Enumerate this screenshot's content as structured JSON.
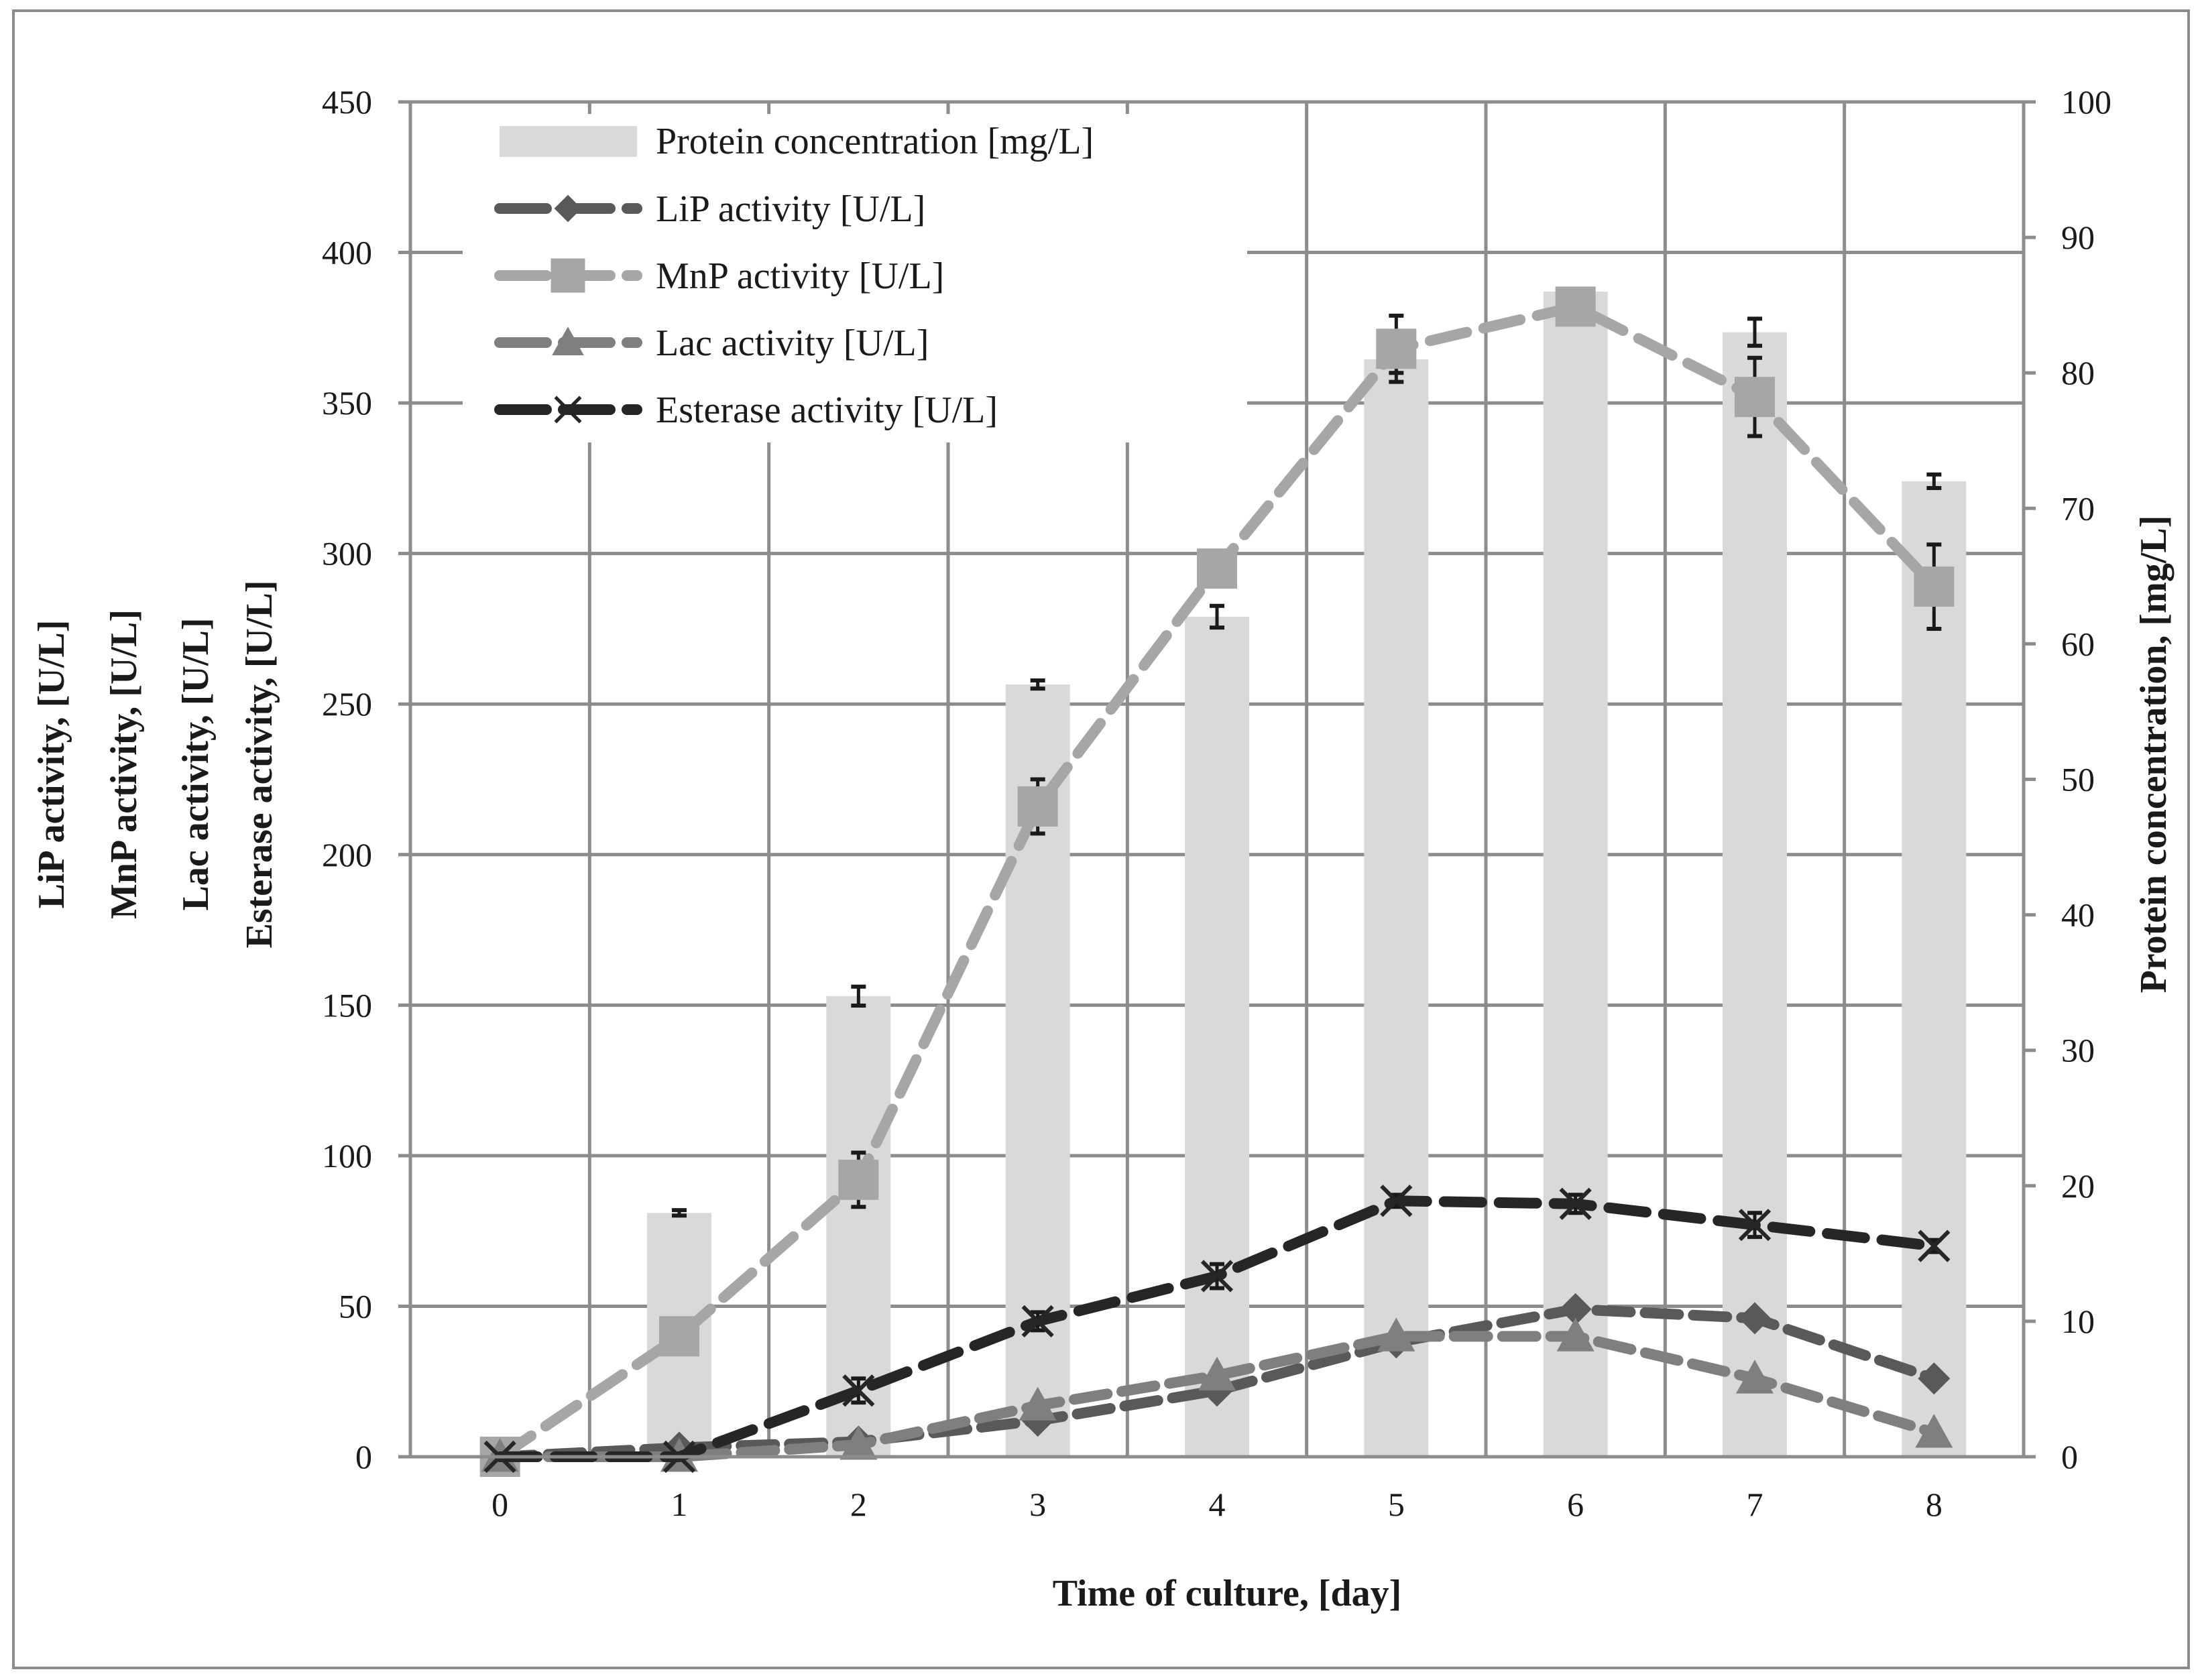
{
  "chart_data": {
    "type": "bar+line",
    "x": [
      0,
      1,
      2,
      3,
      4,
      5,
      6,
      7,
      8
    ],
    "categories": [
      "0",
      "1",
      "2",
      "3",
      "4",
      "5",
      "6",
      "7",
      "8"
    ],
    "xlabel": "Time of culture, [day]",
    "ylabel_left": [
      "LiP activity, [U/L]",
      "MnP activity, [U/L]",
      "Lac activity, [U/L]",
      "Esterase activity, [U/L]"
    ],
    "ylabel_right": "Protein concentration, [mg/L]",
    "ylim_left": [
      0,
      450
    ],
    "yticks_left": [
      0,
      50,
      100,
      150,
      200,
      250,
      300,
      350,
      400,
      450
    ],
    "ylim_right": [
      0,
      100
    ],
    "yticks_right": [
      0,
      10,
      20,
      30,
      40,
      50,
      60,
      70,
      80,
      90,
      100
    ],
    "grid": true,
    "legend_position": "top-left",
    "bars": {
      "name": "Protein concentration [mg/L]",
      "axis": "right",
      "values": [
        0,
        18,
        34,
        57,
        62,
        81,
        86,
        83,
        72
      ],
      "errors": [
        0,
        0.2,
        0.7,
        0.3,
        0.8,
        1.0,
        0,
        1.0,
        0.5
      ],
      "color": "#d9d9d9"
    },
    "series": [
      {
        "name": "LiP activity [U/L]",
        "marker": "diamond",
        "color": "#595959",
        "values": [
          0,
          3,
          5,
          12,
          22,
          38,
          49,
          46,
          26
        ]
      },
      {
        "name": "MnP activity [U/L]",
        "marker": "square",
        "color": "#a6a6a6",
        "values": [
          0,
          40,
          92,
          216,
          295,
          368,
          382,
          352,
          289
        ],
        "errors": [
          0,
          0,
          9,
          9,
          0,
          11,
          0,
          13,
          14
        ]
      },
      {
        "name": "Lac activity [U/L]",
        "marker": "triangle",
        "color": "#7f7f7f",
        "values": [
          0,
          0,
          4,
          17,
          27,
          40,
          40,
          26,
          8
        ]
      },
      {
        "name": "Esterase activity [U/L]",
        "marker": "x",
        "color": "#262626",
        "values": [
          0,
          0,
          22,
          45,
          60,
          85,
          84,
          77,
          70
        ],
        "errors": [
          0,
          0,
          4,
          3,
          4,
          2,
          3,
          4,
          2
        ]
      }
    ]
  }
}
